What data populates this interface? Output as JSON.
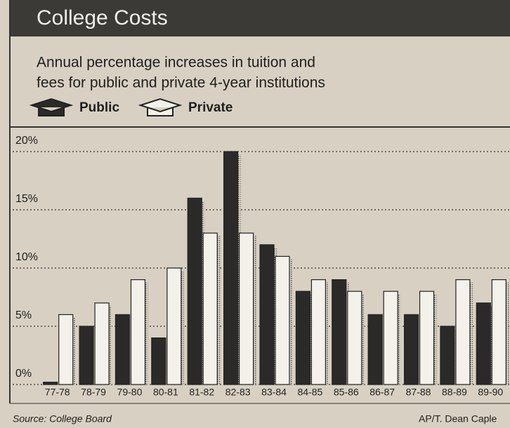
{
  "chart_data": {
    "type": "bar",
    "title": "College Costs",
    "subtitle": [
      "Annual percentage increases in tuition and",
      "fees for public and private 4-year institutions"
    ],
    "categories": [
      "77-78",
      "78-79",
      "79-80",
      "80-81",
      "81-82",
      "82-83",
      "83-84",
      "84-85",
      "85-86",
      "86-87",
      "87-88",
      "88-89",
      "89-90"
    ],
    "series": [
      {
        "name": "Public",
        "color": "#2b2a28",
        "values": [
          0.2,
          5,
          6,
          4,
          16,
          20,
          12,
          8,
          9,
          6,
          6,
          5,
          7
        ]
      },
      {
        "name": "Private",
        "color": "#f4f1ea",
        "values": [
          6,
          7,
          9,
          10,
          13,
          13,
          11,
          9,
          8,
          8,
          8,
          9,
          9
        ]
      }
    ],
    "ylim": [
      0,
      20
    ],
    "yticks": [
      {
        "value": 0,
        "label": "0%"
      },
      {
        "value": 5,
        "label": "5%"
      },
      {
        "value": 10,
        "label": "10%"
      },
      {
        "value": 15,
        "label": "15%"
      },
      {
        "value": 20,
        "label": "20%"
      }
    ],
    "grid": true,
    "source": "Source: College Board",
    "credit": "AP/T. Dean Caple"
  }
}
